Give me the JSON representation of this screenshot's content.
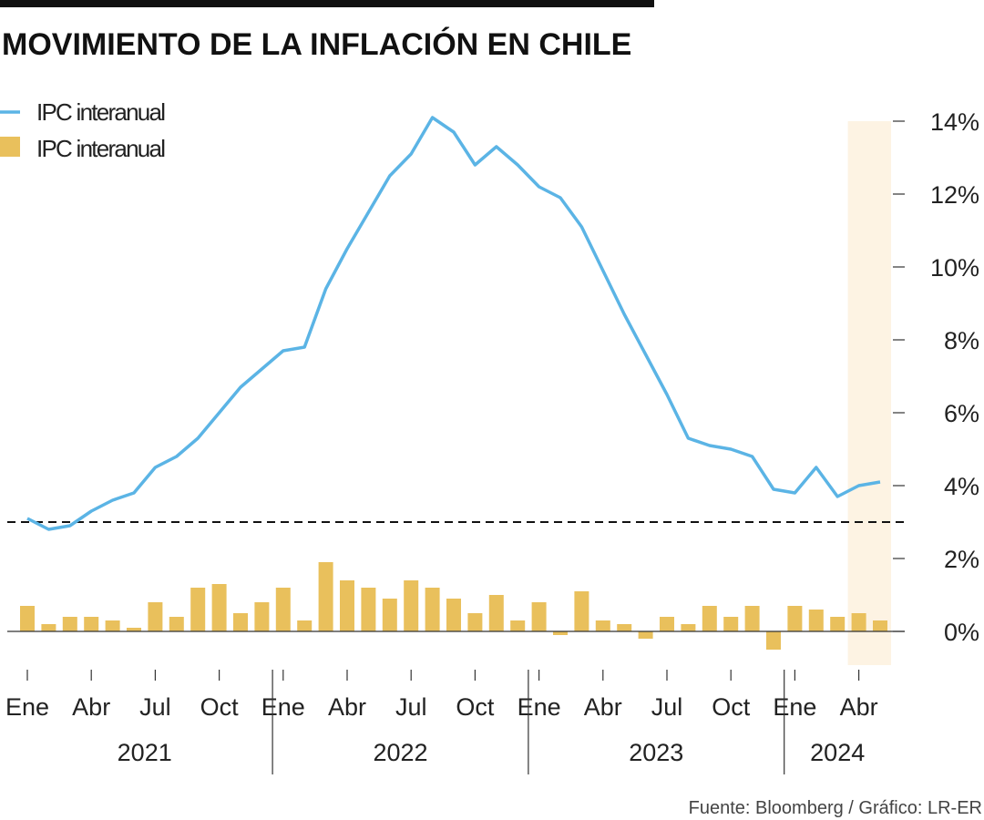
{
  "chart_data": {
    "type": "line+bar",
    "title": "MOVIMIENTO DE LA INFLACIÓN EN CHILE",
    "source": "Fuente: Bloomberg / Gráfico: LR-ER",
    "months": [
      "Ene 2021",
      "Feb 2021",
      "Mar 2021",
      "Abr 2021",
      "May 2021",
      "Jun 2021",
      "Jul 2021",
      "Ago 2021",
      "Sep 2021",
      "Oct 2021",
      "Nov 2021",
      "Dic 2021",
      "Ene 2022",
      "Feb 2022",
      "Mar 2022",
      "Abr 2022",
      "May 2022",
      "Jun 2022",
      "Jul 2022",
      "Ago 2022",
      "Sep 2022",
      "Oct 2022",
      "Nov 2022",
      "Dic 2022",
      "Ene 2023",
      "Feb 2023",
      "Mar 2023",
      "Abr 2023",
      "May 2023",
      "Jun 2023",
      "Jul 2023",
      "Ago 2023",
      "Sep 2023",
      "Oct 2023",
      "Nov 2023",
      "Dic 2023",
      "Ene 2024",
      "Feb 2024",
      "Mar 2024",
      "Abr 2024",
      "May 2024"
    ],
    "series": [
      {
        "name": "IPC interanual",
        "type": "line",
        "color": "#5bb4e5",
        "values": [
          3.1,
          2.8,
          2.9,
          3.3,
          3.6,
          3.8,
          4.5,
          4.8,
          5.3,
          6.0,
          6.7,
          7.2,
          7.7,
          7.8,
          9.4,
          10.5,
          11.5,
          12.5,
          13.1,
          14.1,
          13.7,
          12.8,
          13.3,
          12.8,
          12.2,
          11.9,
          11.1,
          9.9,
          8.7,
          7.6,
          6.5,
          5.3,
          5.1,
          5.0,
          4.8,
          3.9,
          3.8,
          4.5,
          3.7,
          4.0,
          4.1
        ]
      },
      {
        "name": "IPC interanual",
        "type": "bar",
        "color": "#e9c05c",
        "values": [
          0.7,
          0.2,
          0.4,
          0.4,
          0.3,
          0.1,
          0.8,
          0.4,
          1.2,
          1.3,
          0.5,
          0.8,
          1.2,
          0.3,
          1.9,
          1.4,
          1.2,
          0.9,
          1.4,
          1.2,
          0.9,
          0.5,
          1.0,
          0.3,
          0.8,
          -0.1,
          1.1,
          0.3,
          0.2,
          -0.2,
          0.4,
          0.2,
          0.7,
          0.4,
          0.7,
          -0.5,
          0.7,
          0.6,
          0.4,
          0.5,
          0.3
        ]
      }
    ],
    "reference_line": 3,
    "highlight": [
      "Abr 2024",
      "May 2024"
    ],
    "highlight_color": "#fdf3e3",
    "ylim": [
      -0.5,
      14
    ],
    "yticks": [
      {
        "v": 14,
        "label": "14%"
      },
      {
        "v": 12,
        "label": "12%"
      },
      {
        "v": 10,
        "label": "10%"
      },
      {
        "v": 8,
        "label": "8%"
      },
      {
        "v": 6,
        "label": "6%"
      },
      {
        "v": 4,
        "label": "4%"
      },
      {
        "v": 2,
        "label": "2%"
      },
      {
        "v": 0,
        "label": "0%"
      }
    ],
    "xticks": [
      {
        "i": 0,
        "label": "Ene"
      },
      {
        "i": 3,
        "label": "Abr"
      },
      {
        "i": 6,
        "label": "Jul"
      },
      {
        "i": 9,
        "label": "Oct"
      },
      {
        "i": 12,
        "label": "Ene"
      },
      {
        "i": 15,
        "label": "Abr"
      },
      {
        "i": 18,
        "label": "Jul"
      },
      {
        "i": 21,
        "label": "Oct"
      },
      {
        "i": 24,
        "label": "Ene"
      },
      {
        "i": 27,
        "label": "Abr"
      },
      {
        "i": 30,
        "label": "Jul"
      },
      {
        "i": 33,
        "label": "Oct"
      },
      {
        "i": 36,
        "label": "Ene"
      },
      {
        "i": 39,
        "label": "Abr"
      }
    ],
    "years": [
      "2021",
      "2022",
      "2023",
      "2024"
    ],
    "legend": [
      "IPC interanual",
      "IPC interanual"
    ],
    "legend_position": "top-left"
  }
}
